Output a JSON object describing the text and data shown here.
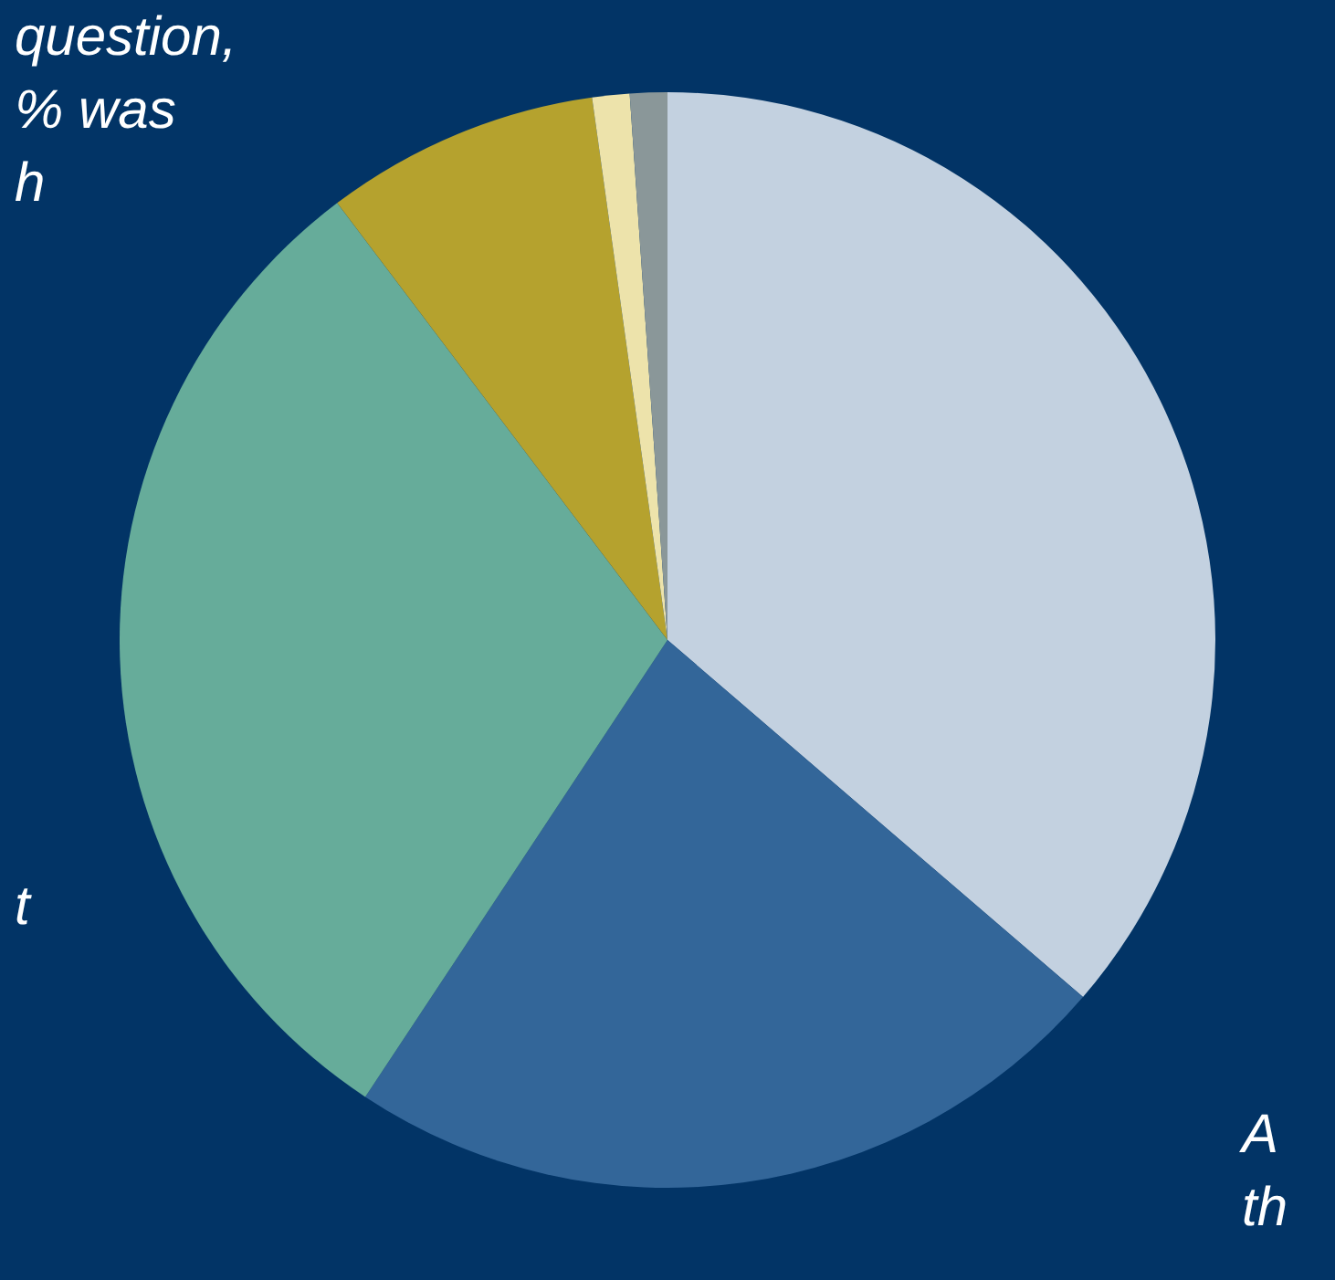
{
  "chart_data": {
    "type": "pie",
    "categories": [
      null,
      null,
      null,
      null,
      null,
      null
    ],
    "values": [
      36.3,
      23.0,
      30.4,
      8.1,
      1.1,
      1.1
    ],
    "colors": [
      "#c3d1e0",
      "#336699",
      "#66ac9a",
      "#b5a22e",
      "#ede3ab",
      "#8a9799"
    ],
    "annotations": [
      "question,",
      "% was",
      "h",
      "t",
      "A",
      "th"
    ]
  }
}
